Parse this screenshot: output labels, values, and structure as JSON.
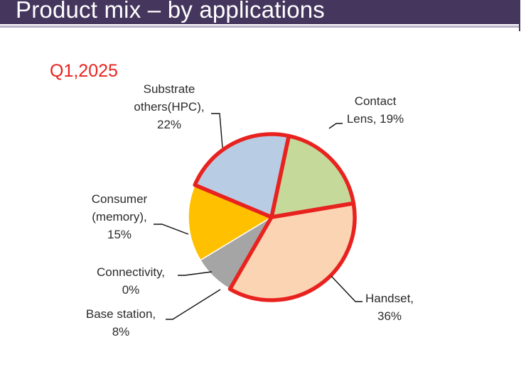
{
  "slide": {
    "title": "Product mix – by applications",
    "colors": {
      "title_bar": "#45365e",
      "accent_red": "#e8231f"
    }
  },
  "chart_data": {
    "type": "pie",
    "title": "Q1,2025",
    "highlight": [
      "Contact Lens",
      "Handset",
      "Substrate others(HPC)"
    ],
    "slices": [
      {
        "name": "Contact Lens",
        "value": 19,
        "color": "#c5d99b",
        "label_lines": [
          "Contact",
          "Lens, 19%"
        ]
      },
      {
        "name": "Handset",
        "value": 36,
        "color": "#fbd4b4",
        "label_lines": [
          "Handset,",
          "36%"
        ]
      },
      {
        "name": "Base station",
        "value": 8,
        "color": "#a5a5a5",
        "label_lines": [
          "Base station,",
          "8%"
        ]
      },
      {
        "name": "Connectivity",
        "value": 0,
        "color": "#8aa8d8",
        "label_lines": [
          "Connectivity,",
          "0%"
        ]
      },
      {
        "name": "Consumer (memory)",
        "value": 15,
        "color": "#ffc000",
        "label_lines": [
          "Consumer",
          "(memory),",
          "15%"
        ]
      },
      {
        "name": "Substrate others(HPC)",
        "value": 22,
        "color": "#b8cce4",
        "label_lines": [
          "Substrate",
          "others(HPC),",
          "22%"
        ]
      }
    ]
  }
}
